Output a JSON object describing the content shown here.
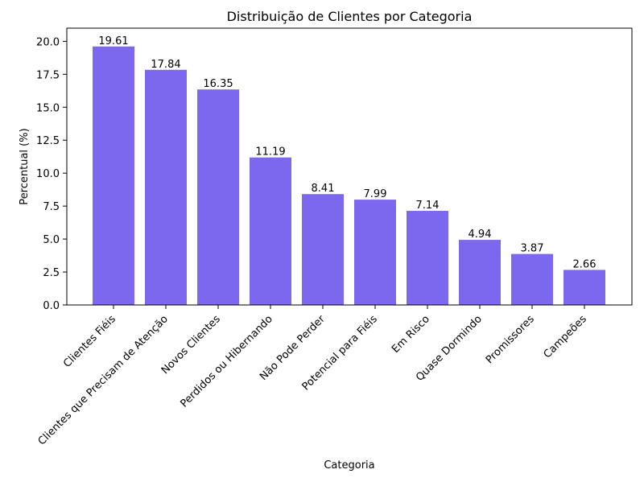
{
  "chart_data": {
    "type": "bar",
    "title": "Distribuição de Clientes por Categoria",
    "xlabel": "Categoria",
    "ylabel": "Percentual (%)",
    "categories": [
      "Clientes Fiéis",
      "Clientes que Precisam de Atenção",
      "Novos Clientes",
      "Perdidos ou Hibernando",
      "Não Pode Perder",
      "Potencial para Fiéis",
      "Em Risco",
      "Quase Dormindo",
      "Promissores",
      "Campeões"
    ],
    "values": [
      19.61,
      17.84,
      16.35,
      11.19,
      8.41,
      7.99,
      7.14,
      4.94,
      3.87,
      2.66
    ],
    "data_labels": [
      "19.61",
      "17.84",
      "16.35",
      "11.19",
      "8.41",
      "7.99",
      "7.14",
      "4.94",
      "3.87",
      "2.66"
    ],
    "ylim": [
      0,
      21.0
    ],
    "yticks": [
      0.0,
      2.5,
      5.0,
      7.5,
      10.0,
      12.5,
      15.0,
      17.5,
      20.0
    ],
    "ytick_labels": [
      "0.0",
      "2.5",
      "5.0",
      "7.5",
      "10.0",
      "12.5",
      "15.0",
      "17.5",
      "20.0"
    ],
    "bar_color": "#7b68ee",
    "grid": false,
    "legend": "none"
  }
}
